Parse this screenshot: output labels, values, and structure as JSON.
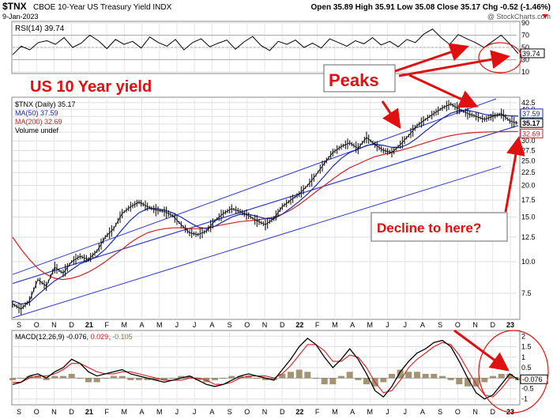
{
  "header": {
    "symbol": "$TNX",
    "name": "CBOE 10-Year US Treasury Yield INDX",
    "date": "9-Jan-2023",
    "ohlc": "Open 35.89  High 35.91  Low 35.08  Close 35.17  Chg -0.52 (-1.46%)",
    "watermark": "@ StockCharts.com"
  },
  "annotations": {
    "title": "US 10 Year yield",
    "peaks": "Peaks",
    "decline": "Decline to here?"
  },
  "colors": {
    "price": "#000000",
    "ma50": "#1a2aa8",
    "ma200": "#d32020",
    "channel": "#2a3ad0",
    "annotation": "#e01010",
    "macd_hist": "#8a7a50"
  },
  "chart_data": [
    {
      "type": "line",
      "name": "RSI panel",
      "legend": "RSI(14) 39.74",
      "ylim": [
        10,
        90
      ],
      "yticks": [
        90,
        70,
        50,
        30,
        10
      ],
      "current_label": "39.74",
      "x_axis": [
        "S",
        "O",
        "N",
        "D",
        "21",
        "F",
        "M",
        "A",
        "M",
        "J",
        "J",
        "A",
        "S",
        "O",
        "N",
        "D",
        "22",
        "F",
        "M",
        "A",
        "M",
        "J",
        "J",
        "A",
        "S",
        "O",
        "N",
        "D",
        "23"
      ],
      "series": [
        {
          "name": "RSI(14)",
          "values": [
            38,
            52,
            46,
            58,
            61,
            55,
            66,
            50,
            57,
            70,
            61,
            48,
            63,
            55,
            60,
            49,
            67,
            58,
            52,
            63,
            46,
            58,
            64,
            51,
            57,
            62,
            47,
            59,
            68,
            53,
            45,
            60,
            55,
            62,
            50,
            57,
            49,
            64,
            58,
            52,
            61,
            56,
            66,
            54,
            60,
            51,
            63,
            58,
            72,
            80,
            66,
            55,
            71,
            64,
            58,
            50,
            60,
            70,
            56,
            40
          ]
        }
      ]
    },
    {
      "type": "line",
      "name": "Price panel",
      "legend": [
        "$TNX (Daily) 35.17",
        "MA(50) 37.59",
        "MA(200) 32.69",
        "Volume undef"
      ],
      "ylim": [
        6,
        44
      ],
      "log_scale": true,
      "yticks": [
        42.5,
        40.0,
        37.5,
        35.0,
        32.5,
        30.0,
        27.5,
        25.0,
        22.5,
        20.0,
        17.5,
        15.0,
        12.5,
        10.0,
        7.5
      ],
      "price_tags": [
        "37.59",
        "35.17",
        "32.69"
      ],
      "x_axis": [
        "S",
        "O",
        "N",
        "D",
        "21",
        "F",
        "M",
        "A",
        "M",
        "J",
        "J",
        "A",
        "S",
        "O",
        "N",
        "D",
        "22",
        "F",
        "M",
        "A",
        "M",
        "J",
        "J",
        "A",
        "S",
        "O",
        "N",
        "D",
        "23"
      ],
      "series": [
        {
          "name": "$TNX",
          "values": [
            6.8,
            6.5,
            7.0,
            8.5,
            8.0,
            9.5,
            9.0,
            10.0,
            10.5,
            10.2,
            11.0,
            12.5,
            13.5,
            15.5,
            16.5,
            17.2,
            16.5,
            16.0,
            15.8,
            15.2,
            14.0,
            13.0,
            12.8,
            13.2,
            14.5,
            15.5,
            16.2,
            15.8,
            15.2,
            14.5,
            14.0,
            14.8,
            16.5,
            17.5,
            18.5,
            20.0,
            22.0,
            24.5,
            27.0,
            28.5,
            29.5,
            28.0,
            31.0,
            29.0,
            27.5,
            27.0,
            29.0,
            31.5,
            34.5,
            36.5,
            38.5,
            40.5,
            42.0,
            40.0,
            38.5,
            37.5,
            36.5,
            37.5,
            38.5,
            36.0,
            35.17
          ]
        },
        {
          "name": "MA(50)",
          "values": [
            7.0,
            6.8,
            6.9,
            7.4,
            7.9,
            8.4,
            8.8,
            9.3,
            9.8,
            10.1,
            10.5,
            11.2,
            12.2,
            13.4,
            14.6,
            15.6,
            16.2,
            16.2,
            16.0,
            15.6,
            15.0,
            14.3,
            13.7,
            13.5,
            13.8,
            14.4,
            15.0,
            15.4,
            15.4,
            15.1,
            14.8,
            14.8,
            15.4,
            16.3,
            17.3,
            18.5,
            20.0,
            21.8,
            23.8,
            25.6,
            27.0,
            27.8,
            28.8,
            29.1,
            28.8,
            28.3,
            28.3,
            29.2,
            30.8,
            32.8,
            34.8,
            36.8,
            38.6,
            39.5,
            39.6,
            39.0,
            38.2,
            37.8,
            37.9,
            37.7,
            37.59
          ]
        },
        {
          "name": "MA(200)",
          "values": [
            12.5,
            11.2,
            10.2,
            9.4,
            8.9,
            8.6,
            8.5,
            8.6,
            8.8,
            9.1,
            9.5,
            10.0,
            10.6,
            11.2,
            11.9,
            12.5,
            13.0,
            13.3,
            13.5,
            13.6,
            13.6,
            13.5,
            13.5,
            13.6,
            13.8,
            14.0,
            14.2,
            14.4,
            14.5,
            14.6,
            14.8,
            15.0,
            15.4,
            16.0,
            16.8,
            17.8,
            18.9,
            20.0,
            21.2,
            22.4,
            23.5,
            24.3,
            25.2,
            26.0,
            26.5,
            27.0,
            27.5,
            28.1,
            28.8,
            29.5,
            30.2,
            30.9,
            31.5,
            31.9,
            32.2,
            32.4,
            32.5,
            32.6,
            32.6,
            32.7,
            32.69
          ]
        }
      ]
    },
    {
      "type": "line",
      "name": "MACD panel",
      "legend": [
        "MACD(12,26,9) -0.076,",
        "0.029,",
        "-0.105"
      ],
      "ylim": [
        -1.2,
        2.2
      ],
      "yticks": [
        2.0,
        1.5,
        1.0,
        0.5,
        -0.5,
        -1.0
      ],
      "current_label": "-0.076",
      "x_axis": [
        "S",
        "O",
        "N",
        "D",
        "21",
        "F",
        "M",
        "A",
        "M",
        "J",
        "J",
        "A",
        "S",
        "O",
        "N",
        "D",
        "22",
        "F",
        "M",
        "A",
        "M",
        "J",
        "J",
        "A",
        "S",
        "O",
        "N",
        "D",
        "23"
      ],
      "series": [
        {
          "name": "MACD",
          "values": [
            -0.3,
            -0.2,
            0.1,
            0.2,
            0.0,
            0.3,
            0.5,
            0.9,
            0.7,
            0.3,
            0.1,
            0.2,
            0.3,
            0.4,
            0.2,
            0.1,
            0.0,
            -0.1,
            -0.2,
            -0.1,
            0.0,
            0.1,
            -0.1,
            -0.3,
            -0.4,
            -0.3,
            -0.1,
            0.1,
            0.2,
            0.1,
            0.0,
            -0.1,
            0.4,
            0.9,
            1.5,
            1.9,
            1.6,
            1.0,
            0.5,
            0.9,
            1.4,
            0.9,
            0.2,
            -0.6,
            -0.9,
            -0.4,
            0.3,
            0.8,
            1.2,
            1.4,
            1.7,
            1.8,
            1.5,
            0.8,
            0.0,
            -0.7,
            -1.0,
            -0.8,
            -0.3,
            0.2,
            -0.076
          ]
        },
        {
          "name": "Signal",
          "values": [
            -0.2,
            -0.2,
            0.0,
            0.1,
            0.1,
            0.2,
            0.4,
            0.7,
            0.7,
            0.5,
            0.3,
            0.2,
            0.2,
            0.3,
            0.3,
            0.2,
            0.1,
            0.0,
            -0.1,
            -0.1,
            -0.1,
            0.0,
            0.0,
            -0.1,
            -0.3,
            -0.3,
            -0.2,
            0.0,
            0.1,
            0.1,
            0.1,
            0.0,
            0.2,
            0.6,
            1.1,
            1.6,
            1.6,
            1.3,
            0.8,
            0.8,
            1.1,
            1.0,
            0.5,
            -0.2,
            -0.7,
            -0.6,
            -0.1,
            0.5,
            0.9,
            1.2,
            1.5,
            1.7,
            1.6,
            1.1,
            0.4,
            -0.3,
            -0.8,
            -0.9,
            -0.5,
            0.0,
            0.029
          ]
        }
      ]
    }
  ]
}
